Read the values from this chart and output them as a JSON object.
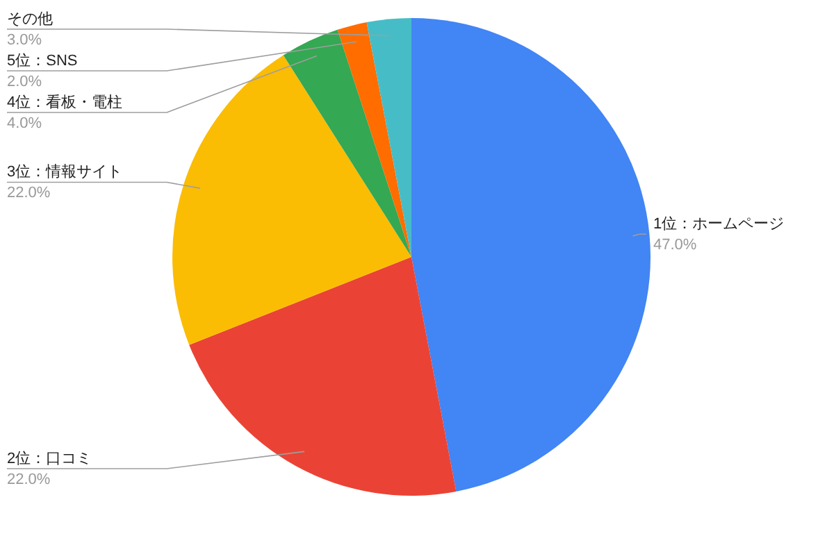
{
  "chart_data": {
    "type": "pie",
    "categories": [
      "1位：ホームページ",
      "2位：口コミ",
      "3位：情報サイト",
      "4位：看板・電柱",
      "5位：SNS",
      "その他"
    ],
    "values": [
      47,
      22,
      22,
      4,
      2,
      3
    ],
    "colors": [
      "#4285f4",
      "#ea4335",
      "#fbbc04",
      "#34a853",
      "#ff6d01",
      "#46bdc6"
    ],
    "value_labels": [
      "47.0%",
      "22.0%",
      "22.0%",
      "4.0%",
      "2.0%",
      "3.0%"
    ]
  }
}
